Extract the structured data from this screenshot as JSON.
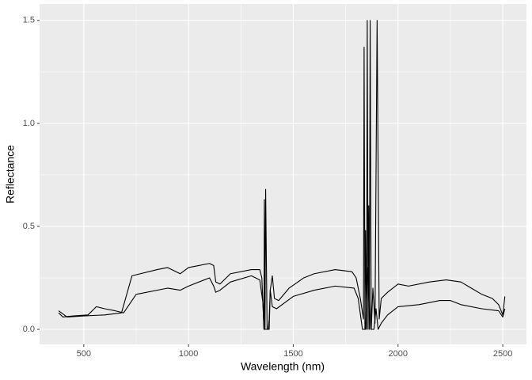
{
  "chart_data": {
    "type": "line",
    "xlabel": "Wavelength (nm)",
    "ylabel": "Reflectance",
    "xlim": [
      289,
      2613
    ],
    "ylim": [
      -0.073,
      1.58
    ],
    "xticks": [
      500,
      1000,
      1500,
      2000,
      2500
    ],
    "x_minor_breaks": [
      750,
      1250,
      1750,
      2250
    ],
    "yticks": [
      {
        "value": 0,
        "label": "0.0"
      },
      {
        "value": 0.5,
        "label": "0.5"
      },
      {
        "value": 1.0,
        "label": "1.0"
      },
      {
        "value": 1.5,
        "label": "1.5"
      }
    ],
    "y_minor_breaks": [
      0.25,
      0.75,
      1.25
    ],
    "grid": true,
    "series": [
      {
        "color": "#000000",
        "x": [
          380,
          420,
          500,
          600,
          680,
          730,
          850,
          900,
          960,
          1000,
          1100,
          1120,
          1130,
          1150,
          1200,
          1300,
          1340,
          1350,
          1360,
          1362,
          1365,
          1368,
          1375,
          1385,
          1390,
          1400,
          1410,
          1430,
          1480,
          1550,
          1600,
          1700,
          1780,
          1800,
          1820,
          1835,
          1838,
          1842,
          1845,
          1850,
          1853,
          1857,
          1860,
          1863,
          1867,
          1872,
          1880,
          1890,
          1900,
          1910,
          1920,
          1950,
          2000,
          2050,
          2150,
          2230,
          2300,
          2350,
          2400,
          2450,
          2480,
          2500,
          2510
        ],
        "values": [
          0.09,
          0.06,
          0.065,
          0.07,
          0.08,
          0.26,
          0.29,
          0.3,
          0.27,
          0.3,
          0.32,
          0.31,
          0.23,
          0.22,
          0.27,
          0.29,
          0.29,
          0.25,
          0.0,
          0.63,
          0.0,
          0.68,
          0.0,
          0.0,
          0.19,
          0.26,
          0.15,
          0.14,
          0.2,
          0.25,
          0.27,
          0.29,
          0.28,
          0.25,
          0.15,
          0.05,
          1.37,
          0.0,
          0.48,
          0.0,
          1.5,
          0.0,
          0.6,
          0.0,
          1.5,
          0.0,
          0.2,
          0.03,
          1.5,
          0.05,
          0.15,
          0.18,
          0.22,
          0.21,
          0.23,
          0.24,
          0.23,
          0.2,
          0.17,
          0.15,
          0.12,
          0.07,
          0.16
        ]
      },
      {
        "color": "#000000",
        "x": [
          380,
          400,
          450,
          520,
          560,
          600,
          650,
          690,
          750,
          900,
          960,
          1000,
          1100,
          1120,
          1130,
          1150,
          1200,
          1300,
          1340,
          1355,
          1360,
          1370,
          1380,
          1385,
          1390,
          1400,
          1420,
          1500,
          1600,
          1700,
          1790,
          1810,
          1830,
          1845,
          1855,
          1870,
          1885,
          1895,
          1905,
          1920,
          1950,
          2000,
          2100,
          2200,
          2250,
          2300,
          2400,
          2480,
          2500,
          2510
        ],
        "values": [
          0.08,
          0.06,
          0.065,
          0.07,
          0.11,
          0.1,
          0.09,
          0.08,
          0.17,
          0.2,
          0.19,
          0.21,
          0.25,
          0.21,
          0.18,
          0.19,
          0.23,
          0.26,
          0.24,
          0.13,
          0.0,
          0.0,
          0.0,
          0.05,
          0.19,
          0.11,
          0.1,
          0.16,
          0.19,
          0.21,
          0.2,
          0.15,
          0.0,
          0.0,
          0.3,
          0.0,
          0.0,
          0.1,
          0.0,
          0.03,
          0.07,
          0.11,
          0.12,
          0.14,
          0.14,
          0.12,
          0.1,
          0.09,
          0.06,
          0.1
        ]
      }
    ]
  }
}
